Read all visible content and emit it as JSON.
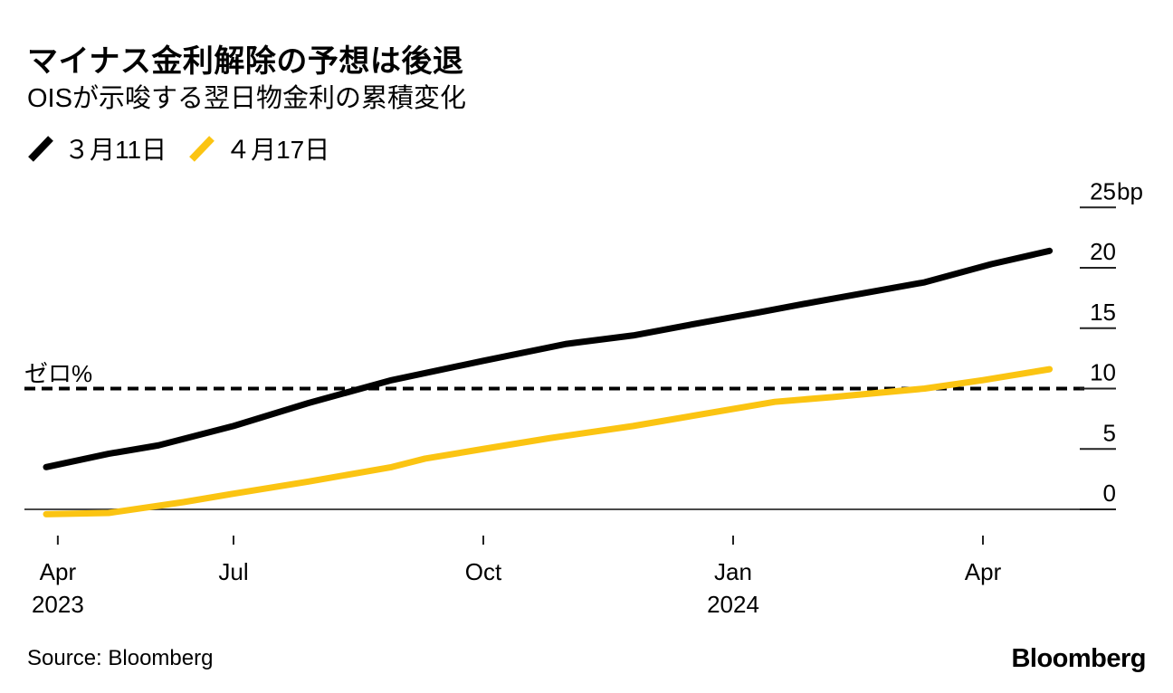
{
  "header": {
    "title": "マイナス金利解除の予想は後退",
    "subtitle": "OISが示唆する翌日物金利の累積変化"
  },
  "legend": [
    {
      "label": "３月11日",
      "color": "#000000"
    },
    {
      "label": "４月17日",
      "color": "#FBC412"
    }
  ],
  "footer": {
    "source": "Source: Bloomberg",
    "logo": "Bloomberg"
  },
  "colors": {
    "series_mar11": "#000000",
    "series_apr17": "#FBC412",
    "baseline": "#4a4a4a",
    "tick": "#222222",
    "text": "#000000",
    "reference_line": "#000000"
  },
  "chart_data": {
    "type": "line",
    "title": "マイナス金利解除の予想は後退",
    "subtitle": "OISが示唆する翌日物金利の累積変化",
    "y_unit": "bp",
    "x_unit": "months from 2023-04-01 (Apr 2023 – Apr 2024 forward horizon)",
    "xlim": [
      0.4,
      13.4
    ],
    "ylim": [
      -1.5,
      26
    ],
    "grid": false,
    "legend_position": "top-left",
    "x_ticks": [
      {
        "x": 0.89,
        "label": "Apr",
        "sublabel": "2023"
      },
      {
        "x": 3,
        "label": "Jul"
      },
      {
        "x": 6,
        "label": "Oct"
      },
      {
        "x": 9,
        "label": "Jan",
        "sublabel": "2024"
      },
      {
        "x": 12,
        "label": "Apr"
      }
    ],
    "y_ticks": [
      {
        "value": 25,
        "label": "25",
        "suffix": "bp"
      },
      {
        "value": 20,
        "label": "20",
        "suffix": ""
      },
      {
        "value": 15,
        "label": "15",
        "suffix": ""
      },
      {
        "value": 10,
        "label": "10",
        "suffix": ""
      },
      {
        "value": 5,
        "label": "5",
        "suffix": ""
      },
      {
        "value": 0,
        "label": "0",
        "suffix": ""
      }
    ],
    "reference_line": {
      "label": "ゼロ%",
      "value": 10,
      "style": "dashed"
    },
    "series": [
      {
        "name": "３月11日",
        "color": "#000000",
        "points": [
          [
            0.75,
            3.5
          ],
          [
            1.5,
            4.6
          ],
          [
            2.1,
            5.3
          ],
          [
            3.0,
            6.9
          ],
          [
            3.9,
            8.8
          ],
          [
            4.9,
            10.7
          ],
          [
            6.0,
            12.3
          ],
          [
            7.0,
            13.7
          ],
          [
            7.8,
            14.4
          ],
          [
            8.5,
            15.3
          ],
          [
            9.3,
            16.3
          ],
          [
            10.0,
            17.2
          ],
          [
            11.3,
            18.8
          ],
          [
            12.1,
            20.3
          ],
          [
            12.8,
            21.4
          ]
        ]
      },
      {
        "name": "４月17日",
        "color": "#FBC412",
        "points": [
          [
            0.75,
            -0.4
          ],
          [
            1.5,
            -0.3
          ],
          [
            2.4,
            0.6
          ],
          [
            3.0,
            1.3
          ],
          [
            3.9,
            2.3
          ],
          [
            4.9,
            3.5
          ],
          [
            5.3,
            4.2
          ],
          [
            6.0,
            5.0
          ],
          [
            6.8,
            5.9
          ],
          [
            7.8,
            6.9
          ],
          [
            9.5,
            8.9
          ],
          [
            10.2,
            9.3
          ],
          [
            11.3,
            10.0
          ],
          [
            12.0,
            10.7
          ],
          [
            12.8,
            11.6
          ]
        ]
      }
    ]
  }
}
